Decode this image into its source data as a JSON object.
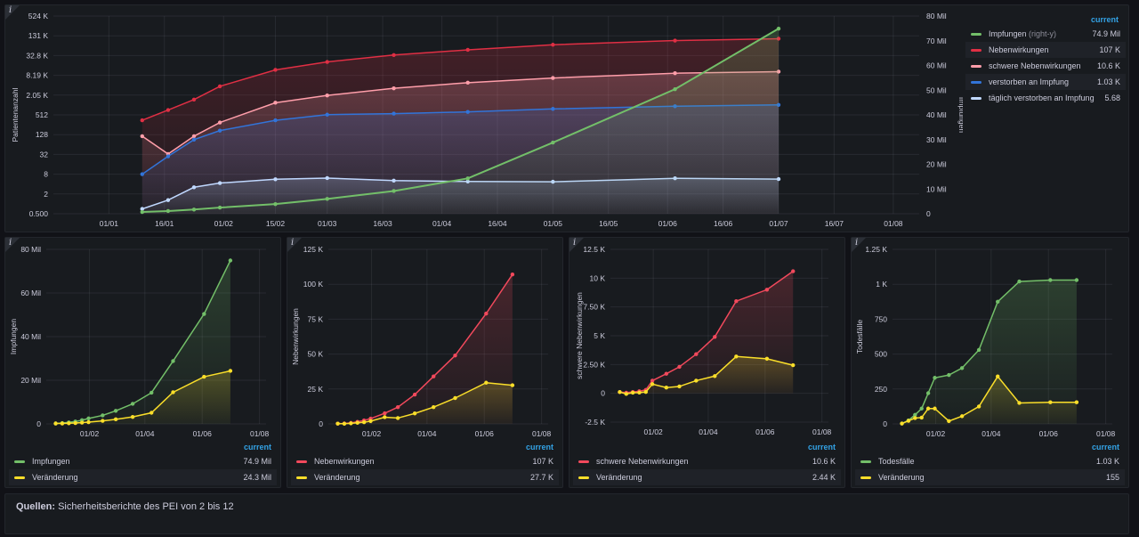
{
  "colors": {
    "impfungen": "#73bf69",
    "nebenwirkungen": "#e02f44",
    "schwere": "#ff9eaa",
    "verstorben": "#3274d9",
    "taeglich": "#c0d8ff",
    "veraenderung": "#fade2a",
    "red": "#f2495c",
    "legend_header": "#33a2e5"
  },
  "main": {
    "legend_header": "current",
    "legend": [
      {
        "name": "Impfungen",
        "suffix": "(right-y)",
        "value": "74.9 Mil",
        "color_key": "impfungen"
      },
      {
        "name": "Nebenwirkungen",
        "suffix": "",
        "value": "107 K",
        "color_key": "nebenwirkungen"
      },
      {
        "name": "schwere Nebenwirkungen",
        "suffix": "",
        "value": "10.6 K",
        "color_key": "schwere"
      },
      {
        "name": "verstorben an Impfung",
        "suffix": "",
        "value": "1.03 K",
        "color_key": "verstorben"
      },
      {
        "name": "täglich verstorben an Impfung",
        "suffix": "",
        "value": "5.68",
        "color_key": "taeglich"
      }
    ]
  },
  "small_panels": [
    {
      "legend_header": "current",
      "legend": [
        {
          "name": "Impfungen",
          "value": "74.9 Mil"
        },
        {
          "name": "Veränderung",
          "value": "24.3 Mil"
        }
      ]
    },
    {
      "legend_header": "current",
      "legend": [
        {
          "name": "Nebenwirkungen",
          "value": "107 K"
        },
        {
          "name": "Veränderung",
          "value": "27.7 K"
        }
      ]
    },
    {
      "legend_header": "current",
      "legend": [
        {
          "name": "schwere Nebenwirkungen",
          "value": "10.6 K"
        },
        {
          "name": "Veränderung",
          "value": "2.44 K"
        }
      ]
    },
    {
      "legend_header": "current",
      "legend": [
        {
          "name": "Todesfälle",
          "value": "1.03 K"
        },
        {
          "name": "Veränderung",
          "value": "155"
        }
      ]
    }
  ],
  "footer": {
    "label": "Quellen:",
    "text": " Sicherheitsberichte des PEI von 2 bis 12"
  },
  "chart_data": [
    {
      "type": "line",
      "scale_left": "log2",
      "xlim": [
        "2020-12-17",
        "2021-08-08"
      ],
      "xticks": [
        "2021-01-01",
        "2021-01-16",
        "2021-02-01",
        "2021-02-15",
        "2021-03-01",
        "2021-03-16",
        "2021-04-01",
        "2021-04-16",
        "2021-05-01",
        "2021-05-16",
        "2021-06-01",
        "2021-06-16",
        "2021-07-01",
        "2021-07-16",
        "2021-08-01"
      ],
      "xtick_labels": [
        "01/01",
        "16/01",
        "01/02",
        "15/02",
        "01/03",
        "16/03",
        "01/04",
        "16/04",
        "01/05",
        "16/05",
        "01/06",
        "16/06",
        "01/07",
        "16/07",
        "01/08"
      ],
      "ylabel": "Patientenanzahl",
      "ylabel_right": "Impfungen",
      "ylim_left": [
        0.5,
        524288
      ],
      "yticks_left": [
        0.5,
        2,
        8,
        32,
        128,
        512,
        2048,
        8192,
        32768,
        131072,
        524288
      ],
      "ytick_labels_left": [
        "0.500",
        "2",
        "8",
        "32",
        "128",
        "512",
        "2.05 K",
        "8.19 K",
        "32.8 K",
        "131 K",
        "524 K"
      ],
      "ylim_right": [
        0,
        80000000
      ],
      "yticks_right": [
        0,
        10000000,
        20000000,
        30000000,
        40000000,
        50000000,
        60000000,
        70000000,
        80000000
      ],
      "ytick_labels_right": [
        "0",
        "10 Mil",
        "20 Mil",
        "30 Mil",
        "40 Mil",
        "50 Mil",
        "60 Mil",
        "70 Mil",
        "80 Mil"
      ],
      "dates": [
        "2021-01-10",
        "2021-01-17",
        "2021-01-24",
        "2021-01-31",
        "2021-02-15",
        "2021-03-01",
        "2021-03-19",
        "2021-04-08",
        "2021-05-01",
        "2021-06-03",
        "2021-07-01"
      ],
      "series": [
        {
          "name": "Nebenwirkungen",
          "color_key": "nebenwirkungen",
          "axis": "left",
          "values": [
            350,
            720,
            1500,
            3800,
            12000,
            21000,
            34000,
            49000,
            70000,
            94000,
            107000
          ]
        },
        {
          "name": "schwere Nebenwirkungen",
          "color_key": "schwere",
          "axis": "left",
          "values": [
            115,
            33,
            115,
            300,
            1200,
            2000,
            3300,
            4900,
            6800,
            9500,
            10600
          ]
        },
        {
          "name": "verstorben an Impfung",
          "color_key": "verstorben",
          "axis": "left",
          "values": [
            8,
            28,
            90,
            170,
            350,
            520,
            560,
            630,
            780,
            940,
            1030
          ]
        },
        {
          "name": "täglich verstorben an Impfung",
          "color_key": "taeglich",
          "axis": "left",
          "values": [
            0.7,
            1.3,
            3.2,
            4.3,
            5.6,
            6.1,
            5.1,
            4.8,
            4.7,
            6.0,
            5.68
          ]
        },
        {
          "name": "Impfungen",
          "color_key": "impfungen",
          "axis": "right",
          "values": [
            700000,
            1100000,
            1700000,
            2500000,
            3900000,
            6000000,
            9200000,
            14300000,
            28800000,
            50400000,
            74900000
          ]
        }
      ]
    },
    {
      "type": "line",
      "ylabel": "Impfungen",
      "xlim": [
        "2020-12-17",
        "2021-08-08"
      ],
      "xticks": [
        "2021-02-01",
        "2021-04-01",
        "2021-06-01",
        "2021-08-01"
      ],
      "xtick_labels": [
        "01/02",
        "01/04",
        "01/06",
        "01/08"
      ],
      "ylim": [
        0,
        80000000
      ],
      "yticks": [
        0,
        20000000,
        40000000,
        60000000,
        80000000
      ],
      "ytick_labels": [
        "0",
        "20 Mil",
        "40 Mil",
        "60 Mil",
        "80 Mil"
      ],
      "dates": [
        "2020-12-27",
        "2021-01-03",
        "2021-01-10",
        "2021-01-17",
        "2021-01-24",
        "2021-01-31",
        "2021-02-15",
        "2021-03-01",
        "2021-03-19",
        "2021-04-08",
        "2021-05-01",
        "2021-06-03",
        "2021-07-01"
      ],
      "series": [
        {
          "name": "Impfungen",
          "color_key": "impfungen",
          "values": [
            200000,
            400000,
            700000,
            1100000,
            1700000,
            2500000,
            3900000,
            6000000,
            9200000,
            14300000,
            28800000,
            50400000,
            74900000
          ]
        },
        {
          "name": "Veränderung",
          "color_key": "veraenderung",
          "values": [
            200000,
            200000,
            300000,
            400000,
            600000,
            800000,
            1400000,
            2100000,
            3200000,
            5100000,
            14500000,
            21600000,
            24300000
          ]
        }
      ]
    },
    {
      "type": "line",
      "ylabel": "Nebenwirkungen",
      "xlim": [
        "2020-12-17",
        "2021-08-08"
      ],
      "xticks": [
        "2021-02-01",
        "2021-04-01",
        "2021-06-01",
        "2021-08-01"
      ],
      "xtick_labels": [
        "01/02",
        "01/04",
        "01/06",
        "01/08"
      ],
      "ylim": [
        0,
        125000
      ],
      "yticks": [
        0,
        25000,
        50000,
        75000,
        100000,
        125000
      ],
      "ytick_labels": [
        "0",
        "25 K",
        "50 K",
        "75 K",
        "100 K",
        "125 K"
      ],
      "dates": [
        "2020-12-27",
        "2021-01-03",
        "2021-01-10",
        "2021-01-17",
        "2021-01-24",
        "2021-01-31",
        "2021-02-15",
        "2021-03-01",
        "2021-03-19",
        "2021-04-08",
        "2021-05-01",
        "2021-06-03",
        "2021-07-01"
      ],
      "series": [
        {
          "name": "Nebenwirkungen",
          "color_key": "red",
          "values": [
            200,
            320,
            720,
            1500,
            2500,
            3800,
            7600,
            12000,
            21000,
            34000,
            49000,
            79000,
            107000
          ]
        },
        {
          "name": "Veränderung",
          "color_key": "veraenderung",
          "values": [
            200,
            120,
            400,
            800,
            1200,
            2000,
            4800,
            4200,
            7500,
            12000,
            18500,
            29500,
            27700
          ]
        }
      ]
    },
    {
      "type": "line",
      "ylabel": "schwere Nebenwirkungen",
      "xlim": [
        "2020-12-17",
        "2021-08-08"
      ],
      "xticks": [
        "2021-02-01",
        "2021-04-01",
        "2021-06-01",
        "2021-08-01"
      ],
      "xtick_labels": [
        "01/02",
        "01/04",
        "01/06",
        "01/08"
      ],
      "ylim": [
        -2500,
        12500
      ],
      "yticks": [
        -2500,
        0,
        2500,
        5000,
        7500,
        10000,
        12500
      ],
      "ytick_labels": [
        "-2.5 K",
        "0",
        "2.50 K",
        "5 K",
        "7.50 K",
        "10 K",
        "12.5 K"
      ],
      "dates": [
        "2020-12-27",
        "2021-01-03",
        "2021-01-10",
        "2021-01-17",
        "2021-01-24",
        "2021-01-31",
        "2021-02-15",
        "2021-03-01",
        "2021-03-19",
        "2021-04-08",
        "2021-05-01",
        "2021-06-03",
        "2021-07-01"
      ],
      "series": [
        {
          "name": "schwere Nebenwirkungen",
          "color_key": "red",
          "values": [
            110,
            60,
            115,
            180,
            300,
            1100,
            1700,
            2300,
            3400,
            4900,
            8000,
            9000,
            10600
          ]
        },
        {
          "name": "Veränderung",
          "color_key": "veraenderung",
          "values": [
            110,
            -50,
            55,
            65,
            120,
            800,
            500,
            600,
            1100,
            1500,
            3200,
            3000,
            2440
          ]
        }
      ]
    },
    {
      "type": "line",
      "ylabel": "Todesfälle",
      "xlim": [
        "2020-12-17",
        "2021-08-08"
      ],
      "xticks": [
        "2021-02-01",
        "2021-04-01",
        "2021-06-01",
        "2021-08-01"
      ],
      "xtick_labels": [
        "01/02",
        "01/04",
        "01/06",
        "01/08"
      ],
      "ylim": [
        0,
        1250
      ],
      "yticks": [
        0,
        250,
        500,
        750,
        1000,
        1250
      ],
      "ytick_labels": [
        "0",
        "250",
        "500",
        "750",
        "1 K",
        "1.25 K"
      ],
      "dates": [
        "2020-12-27",
        "2021-01-03",
        "2021-01-10",
        "2021-01-17",
        "2021-01-24",
        "2021-01-31",
        "2021-02-15",
        "2021-03-01",
        "2021-03-19",
        "2021-04-08",
        "2021-05-01",
        "2021-06-03",
        "2021-07-01"
      ],
      "series": [
        {
          "name": "Todesfälle",
          "color_key": "impfungen",
          "values": [
            3,
            25,
            65,
            110,
            220,
            330,
            350,
            400,
            530,
            875,
            1020,
            1030,
            1030
          ]
        },
        {
          "name": "Veränderung",
          "color_key": "veraenderung",
          "values": [
            3,
            22,
            42,
            45,
            110,
            110,
            20,
            55,
            125,
            340,
            150,
            155,
            155
          ]
        }
      ]
    }
  ]
}
